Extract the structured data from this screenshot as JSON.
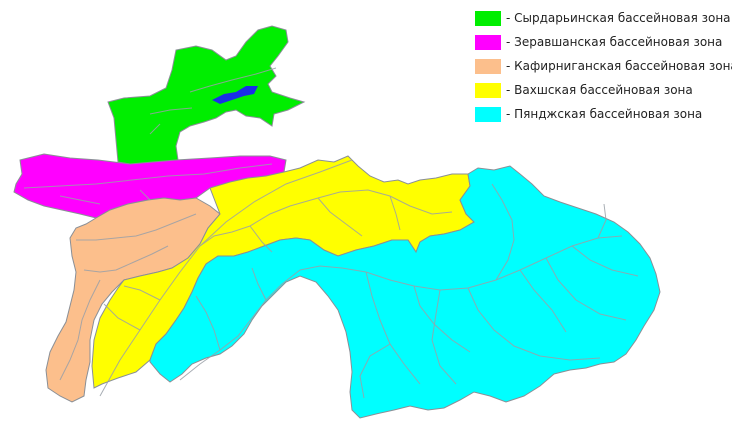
{
  "legend": {
    "items": [
      {
        "label": "- Сырдарьинская бассейновая зона",
        "color": "#00ee00"
      },
      {
        "label": "- Зеравшанская бассейновая зона",
        "color": "#ff00ff"
      },
      {
        "label": "- Кафирниганская бассейновая зона",
        "color": "#fcbf8c"
      },
      {
        "label": "- Вахшская бассейновая зона",
        "color": "#ffff00"
      },
      {
        "label": "- Пянджская бассейновая зона",
        "color": "#00ffff"
      }
    ]
  },
  "colors": {
    "rivers": "#9aa0a8",
    "lake": "#1a2ee8",
    "border": "#8a8f96"
  }
}
